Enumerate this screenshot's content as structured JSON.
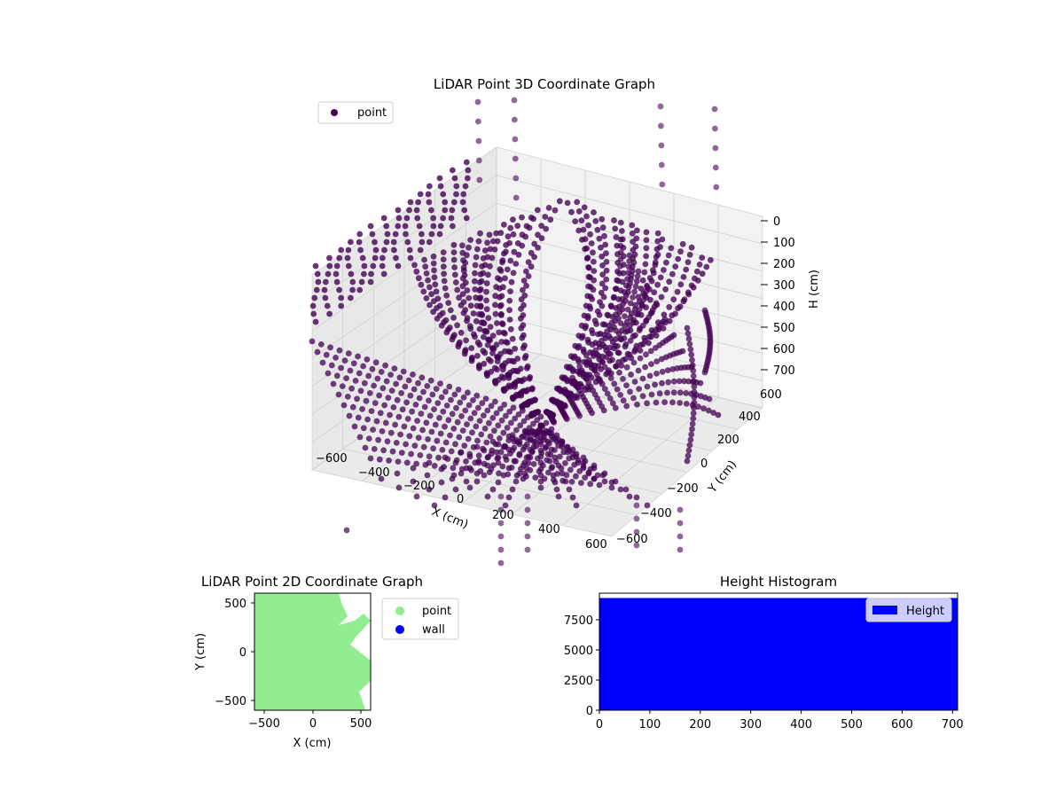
{
  "chart_data": [
    {
      "type": "scatter",
      "title": "LiDAR Point 3D Coordinate Graph",
      "xlabel": "X (cm)",
      "ylabel": "Y (cm)",
      "zlabel": "H (cm)",
      "x_ticks": [
        "−600",
        "−400",
        "−200",
        "0",
        "200",
        "400",
        "600"
      ],
      "y_ticks": [
        "−600",
        "−400",
        "−200",
        "0",
        "200",
        "400",
        "600"
      ],
      "z_ticks": [
        "0",
        "100",
        "200",
        "300",
        "400",
        "500",
        "600",
        "700"
      ],
      "xlim": [
        -650,
        650
      ],
      "ylim": [
        -650,
        650
      ],
      "zlim": [
        0,
        700
      ],
      "z_inverted": true,
      "legend": {
        "entries": [
          "point"
        ],
        "placement": "top-left"
      },
      "colors": {
        "point": "#440154"
      },
      "grid": true
    },
    {
      "type": "scatter",
      "title": "LiDAR Point 2D Coordinate Graph",
      "xlabel": "X (cm)",
      "ylabel": "Y (cm)",
      "x_ticks": [
        "−500",
        "0",
        "500"
      ],
      "y_ticks": [
        "−500",
        "0",
        "500"
      ],
      "xlim": [
        -600,
        600
      ],
      "ylim": [
        -600,
        600
      ],
      "legend": {
        "entries": [
          "point",
          "wall"
        ],
        "placement": "outside-right"
      },
      "colors": {
        "point": "#90ee90",
        "wall": "#0000ff"
      },
      "grid": false
    },
    {
      "type": "bar",
      "title": "Height Histogram",
      "x_ticks": [
        "0",
        "100",
        "200",
        "300",
        "400",
        "500",
        "600",
        "700"
      ],
      "y_ticks": [
        "0",
        "2500",
        "5000",
        "7500"
      ],
      "xlim": [
        0,
        710
      ],
      "ylim": [
        0,
        9700
      ],
      "bins": {
        "start": 0,
        "end": 710,
        "count": 1,
        "value": 9300
      },
      "legend": {
        "entries": [
          "Height"
        ],
        "placement": "top-right"
      },
      "colors": {
        "bar": "#0000ff"
      },
      "grid": false
    }
  ]
}
